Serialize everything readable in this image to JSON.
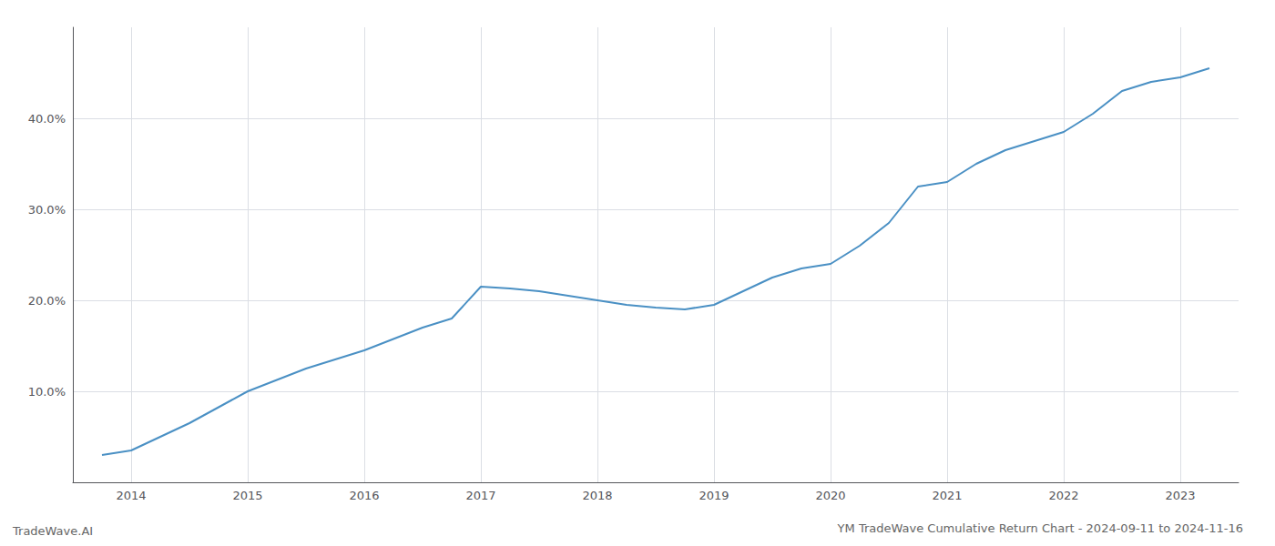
{
  "chart_data": {
    "type": "line",
    "title": "YM TradeWave Cumulative Return Chart - 2024-09-11 to 2024-11-16",
    "annotations": [
      "TradeWave.AI"
    ],
    "x": [
      2013.75,
      2014.0,
      2014.5,
      2015.0,
      2015.5,
      2016.0,
      2016.5,
      2016.75,
      2017.0,
      2017.25,
      2017.5,
      2017.75,
      2018.0,
      2018.25,
      2018.5,
      2018.75,
      2019.0,
      2019.25,
      2019.5,
      2019.75,
      2020.0,
      2020.25,
      2020.5,
      2020.75,
      2021.0,
      2021.25,
      2021.5,
      2021.75,
      2022.0,
      2022.25,
      2022.5,
      2022.75,
      2023.0,
      2023.25
    ],
    "values": [
      3.0,
      3.5,
      6.5,
      10.0,
      12.5,
      14.5,
      17.0,
      18.0,
      21.5,
      21.3,
      21.0,
      20.5,
      20.0,
      19.5,
      19.2,
      19.0,
      19.5,
      21.0,
      22.5,
      23.5,
      24.0,
      26.0,
      28.5,
      32.5,
      33.0,
      35.0,
      36.5,
      37.5,
      38.5,
      40.5,
      43.0,
      44.0,
      44.5,
      45.5
    ],
    "color": "#4a90c4",
    "xlim": [
      2013.5,
      2023.5
    ],
    "xticks": [
      2014,
      2015,
      2016,
      2017,
      2018,
      2019,
      2020,
      2021,
      2022,
      2023
    ],
    "ylim": [
      0,
      50
    ],
    "yticks": [
      {
        "value": 10.0,
        "label": "10.0%"
      },
      {
        "value": 20.0,
        "label": "20.0%"
      },
      {
        "value": 30.0,
        "label": "30.0%"
      },
      {
        "value": 40.0,
        "label": "40.0%"
      }
    ],
    "grid": true
  }
}
